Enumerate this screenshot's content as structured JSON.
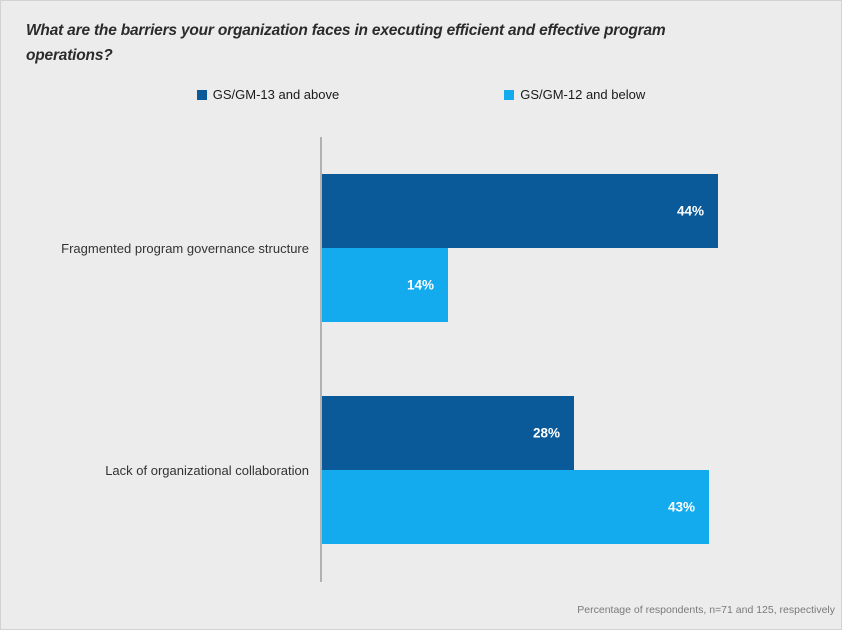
{
  "title_lines": [
    "What are the barriers your organization faces in executing efficient and effective program",
    "operations?"
  ],
  "legend": [
    {
      "label": "GS/GM-13 and above",
      "color": "#0a5a9a"
    },
    {
      "label": "GS/GM-12 and below",
      "color": "#14aaee"
    }
  ],
  "footnote": "Percentage of respondents, n=71 and 125, respectively",
  "colors": {
    "background": "#ececec",
    "axis_line": "#b1b1b1",
    "dark_blue": "#0a5a9a",
    "light_blue": "#14aaee",
    "title_text": "#2b2b2b",
    "category_text": "#333333",
    "value_label_text": "#ffffff",
    "footnote_text": "#7a7a7a"
  },
  "chart_data": {
    "type": "bar",
    "orientation": "horizontal",
    "title": "What are the barriers your organization faces in executing efficient and effective program operations?",
    "categories": [
      "Fragmented program governance structure",
      "Lack of organizational collaboration"
    ],
    "series": [
      {
        "name": "GS/GM-13 and above",
        "color": "#0a5a9a",
        "values": [
          44,
          28
        ]
      },
      {
        "name": "GS/GM-12 and below",
        "color": "#14aaee",
        "values": [
          14,
          43
        ]
      }
    ],
    "value_suffix": "%",
    "xlim": [
      0,
      49
    ],
    "grid": false,
    "legend_position": "top",
    "note": "Percentage of respondents, n=71 and 125, respectively"
  }
}
